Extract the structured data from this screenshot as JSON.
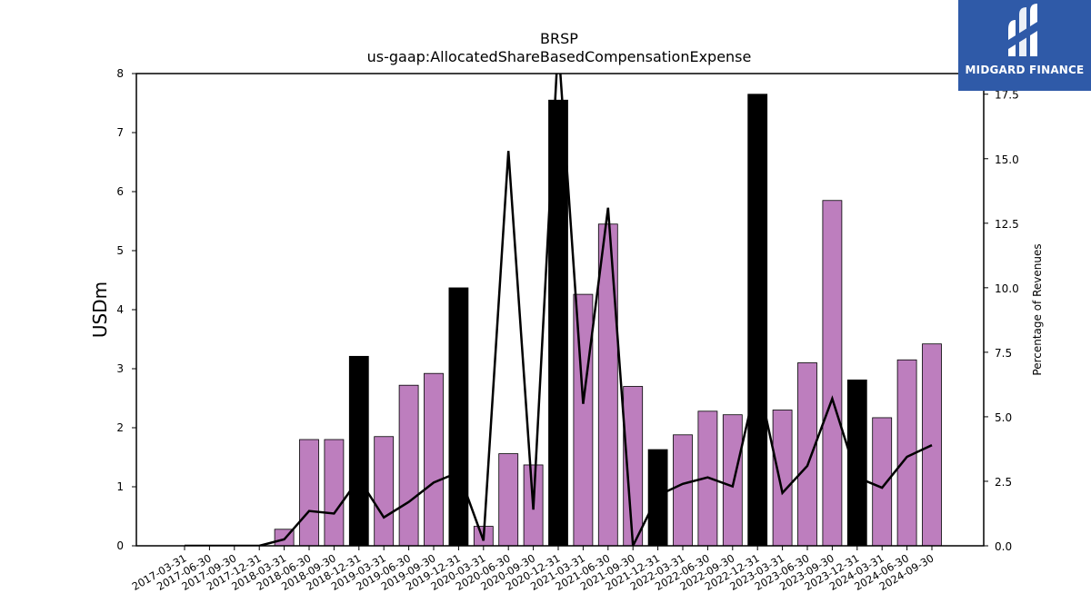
{
  "brand": {
    "name": "MIDGARD FINANCE",
    "color": "#2f5aa8"
  },
  "chart_data": {
    "type": "bar",
    "title": "BRSP",
    "subtitle": "us-gaap:AllocatedShareBasedCompensationExpense",
    "ylabel": "USDm",
    "y2label": "Percentage of Revenues",
    "ylim": [
      0,
      8
    ],
    "y2lim": [
      0,
      18.3
    ],
    "yticks": [
      0,
      1,
      2,
      3,
      4,
      5,
      6,
      7,
      8
    ],
    "y2ticks": [
      "0.0",
      "2.5",
      "5.0",
      "7.5",
      "10.0",
      "12.5",
      "15.0",
      "17.5"
    ],
    "y2tick_values": [
      0,
      2.5,
      5,
      7.5,
      10,
      12.5,
      15,
      17.5
    ],
    "categories": [
      "2017-03-31",
      "2017-06-30",
      "2017-09-30",
      "2017-12-31",
      "2018-03-31",
      "2018-06-30",
      "2018-09-30",
      "2018-12-31",
      "2019-03-31",
      "2019-06-30",
      "2019-09-30",
      "2019-12-31",
      "2020-03-31",
      "2020-06-30",
      "2020-09-30",
      "2020-12-31",
      "2021-03-31",
      "2021-06-30",
      "2021-09-30",
      "2021-12-31",
      "2022-03-31",
      "2022-06-30",
      "2022-09-30",
      "2022-12-31",
      "2023-03-31",
      "2023-06-30",
      "2023-09-30",
      "2023-12-31",
      "2024-03-31",
      "2024-06-30",
      "2024-09-30"
    ],
    "series": [
      {
        "kind": "bar",
        "values": [
          0,
          0,
          0,
          0,
          0.28,
          1.8,
          1.8,
          3.21,
          1.85,
          2.72,
          2.92,
          4.37,
          0.33,
          1.56,
          1.37,
          7.55,
          4.26,
          5.45,
          2.7,
          1.63,
          1.88,
          2.28,
          2.22,
          7.65,
          2.3,
          3.1,
          5.85,
          2.81,
          2.17,
          3.15,
          3.42
        ],
        "highlight": [
          false,
          false,
          false,
          false,
          false,
          false,
          false,
          true,
          false,
          false,
          false,
          true,
          false,
          false,
          false,
          true,
          false,
          false,
          false,
          true,
          false,
          false,
          false,
          true,
          false,
          false,
          false,
          true,
          false,
          false,
          false
        ],
        "color": "#bd7ebe",
        "highlight_color": "#000000"
      },
      {
        "kind": "line",
        "axis": "right",
        "values": [
          0,
          0,
          0,
          0,
          0.25,
          1.35,
          1.25,
          2.6,
          1.1,
          1.7,
          2.45,
          2.85,
          0.2,
          15.3,
          1.4,
          19.5,
          5.5,
          13.1,
          0,
          1.95,
          2.4,
          2.65,
          2.3,
          6.5,
          2.05,
          3.1,
          5.7,
          2.65,
          2.25,
          3.45,
          3.9
        ],
        "color": "#000000"
      }
    ]
  }
}
